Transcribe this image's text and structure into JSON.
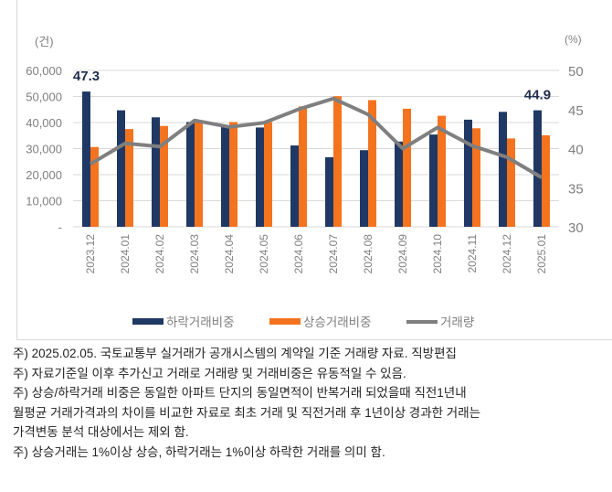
{
  "chart_data": {
    "type": "bar",
    "categories": [
      "2023.12",
      "2024.01",
      "2024.02",
      "2024.03",
      "2024.04",
      "2024.05",
      "2024.06",
      "2024.07",
      "2024.08",
      "2024.09",
      "2024.10",
      "2024.11",
      "2024.12",
      "2025.01"
    ],
    "series": [
      {
        "name": "하락거래비중",
        "type": "bar",
        "axis": "right",
        "color": "#203864",
        "values": [
          47.3,
          44.9,
          44.0,
          43.4,
          42.9,
          42.7,
          40.4,
          38.9,
          39.8,
          40.9,
          41.8,
          43.7,
          44.7,
          44.9
        ]
      },
      {
        "name": "상승거래비중",
        "type": "bar",
        "axis": "right",
        "color": "#f4731f",
        "values": [
          40.2,
          42.5,
          42.9,
          43.5,
          43.4,
          43.4,
          45.4,
          46.7,
          46.2,
          45.1,
          44.2,
          42.6,
          41.3,
          41.7
        ]
      },
      {
        "name": "거래량",
        "type": "line",
        "axis": "left",
        "color": "#7f7f7f",
        "values": [
          24100,
          32000,
          30800,
          40800,
          38300,
          39900,
          45100,
          49200,
          43100,
          30000,
          38100,
          31100,
          26700,
          18900
        ]
      }
    ],
    "left_axis": {
      "unit": "(건)",
      "ylim": [
        0,
        60000
      ],
      "ticks": [
        "-",
        "10,000",
        "20,000",
        "30,000",
        "40,000",
        "50,000",
        "60,000"
      ]
    },
    "right_axis": {
      "unit": "(%)",
      "ylim": [
        30,
        50
      ],
      "ticks": [
        "30",
        "35",
        "40",
        "45",
        "50"
      ]
    },
    "data_labels": [
      {
        "category": "2023.12",
        "text": "47.3"
      },
      {
        "category": "2025.01",
        "text": "44.9"
      }
    ],
    "legend_position": "bottom",
    "grid": true
  },
  "notes": [
    "주) 2025.02.05. 국토교통부 실거래가 공개시스템의 계약일 기준 거래량  자료. 직방편집",
    "주) 자료기준일 이후 추가신고 거래로 거래량 및 거래비중은 유동적일 수 있음.",
    "주) 상승/하락거래 비중은 동일한 아파트 단지의 동일면적이 반복거래 되었을때 직전1년내",
    "월평균 거래가격과의 차이를 비교한 자료로 최초 거래 및 직전거래 후 1년이상 경과한 거래는",
    "가격변동 분석 대상에서는 제외 함.",
    "주) 상승거래는 1%이상 상승, 하락거래는 1%이상 하락한 거래를 의미 함."
  ]
}
